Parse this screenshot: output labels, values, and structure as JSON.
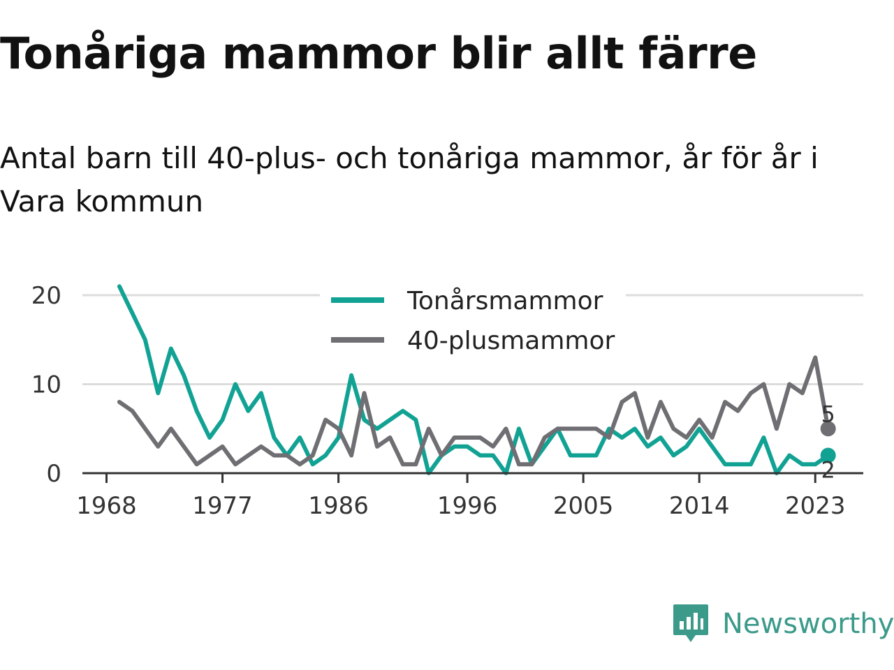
{
  "title": "Tonåriga mammor blir allt färre",
  "subtitle": "Antal barn till 40-plus- och tonåriga mammor, år för år i Vara kommun",
  "brand": {
    "name": "Newsworthy",
    "icon": "bar-chart-speech-bubble-icon",
    "color": "#3b9a8a"
  },
  "chart_data": {
    "type": "line",
    "x": [
      1969,
      1970,
      1971,
      1972,
      1973,
      1974,
      1975,
      1976,
      1977,
      1978,
      1979,
      1980,
      1981,
      1982,
      1983,
      1984,
      1985,
      1986,
      1987,
      1988,
      1989,
      1990,
      1991,
      1992,
      1993,
      1994,
      1995,
      1996,
      1997,
      1998,
      1999,
      2000,
      2001,
      2002,
      2003,
      2004,
      2005,
      2006,
      2007,
      2008,
      2009,
      2010,
      2011,
      2012,
      2013,
      2014,
      2015,
      2016,
      2017,
      2018,
      2019,
      2020,
      2021,
      2022,
      2023,
      2024
    ],
    "series": [
      {
        "name": "Tonårsmammor",
        "color": "#11a294",
        "values": [
          21,
          18,
          15,
          9,
          14,
          11,
          7,
          4,
          6,
          10,
          7,
          9,
          4,
          2,
          4,
          1,
          2,
          4,
          11,
          6,
          5,
          6,
          7,
          6,
          0,
          2,
          3,
          3,
          2,
          2,
          0,
          5,
          1,
          3,
          5,
          2,
          2,
          2,
          5,
          4,
          5,
          3,
          4,
          2,
          3,
          5,
          3,
          1,
          1,
          1,
          4,
          0,
          2,
          1,
          1,
          2
        ],
        "end_label": "2"
      },
      {
        "name": "40-plusmammor",
        "color": "#6e6e73",
        "values": [
          8,
          7,
          5,
          3,
          5,
          3,
          1,
          2,
          3,
          1,
          2,
          3,
          2,
          2,
          1,
          2,
          6,
          5,
          2,
          9,
          3,
          4,
          1,
          1,
          5,
          2,
          4,
          4,
          4,
          3,
          5,
          1,
          1,
          4,
          5,
          5,
          5,
          5,
          4,
          8,
          9,
          4,
          8,
          5,
          4,
          6,
          4,
          8,
          7,
          9,
          10,
          5,
          10,
          9,
          13,
          5
        ],
        "end_label": "5"
      }
    ],
    "x_ticks": [
      1968,
      1977,
      1986,
      1996,
      2005,
      2014,
      2023
    ],
    "y_ticks": [
      0,
      10,
      20
    ],
    "ylim": [
      0,
      22
    ],
    "grid": true,
    "legend_position": "top-center"
  }
}
